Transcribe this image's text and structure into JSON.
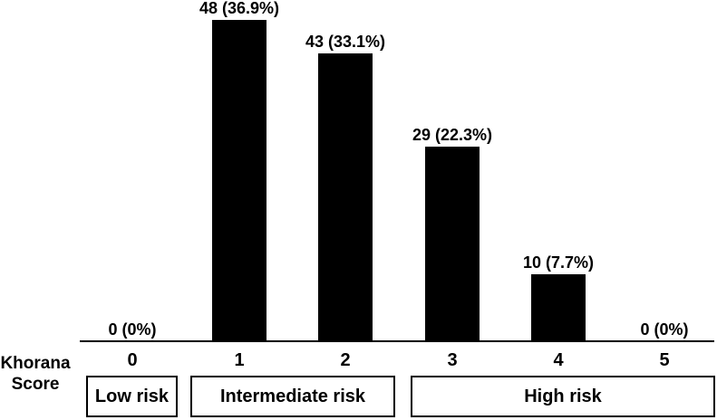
{
  "chart_data": {
    "type": "bar",
    "categories": [
      "0",
      "1",
      "2",
      "3",
      "4",
      "5"
    ],
    "values": [
      0,
      48,
      43,
      29,
      10,
      0
    ],
    "bar_labels": [
      "0 (0%)",
      "48 (36.9%)",
      "43 (33.1%)",
      "29 (22.3%)",
      "10 (7.7%)",
      "0 (0%)"
    ],
    "xlabel": "Khorana Score",
    "xlabel_lines": [
      "Khorana",
      "Score"
    ],
    "ylabel": "",
    "y_axis_visible": false,
    "grid": false,
    "legend": false,
    "bar_color": "#000000",
    "background_color": "#ffffff",
    "risk_groups": [
      {
        "label": "Low risk",
        "scores": [
          "0"
        ]
      },
      {
        "label": "Intermediate risk",
        "scores": [
          "1",
          "2"
        ]
      },
      {
        "label": "High risk",
        "scores": [
          "3",
          "4",
          "5"
        ]
      }
    ]
  }
}
